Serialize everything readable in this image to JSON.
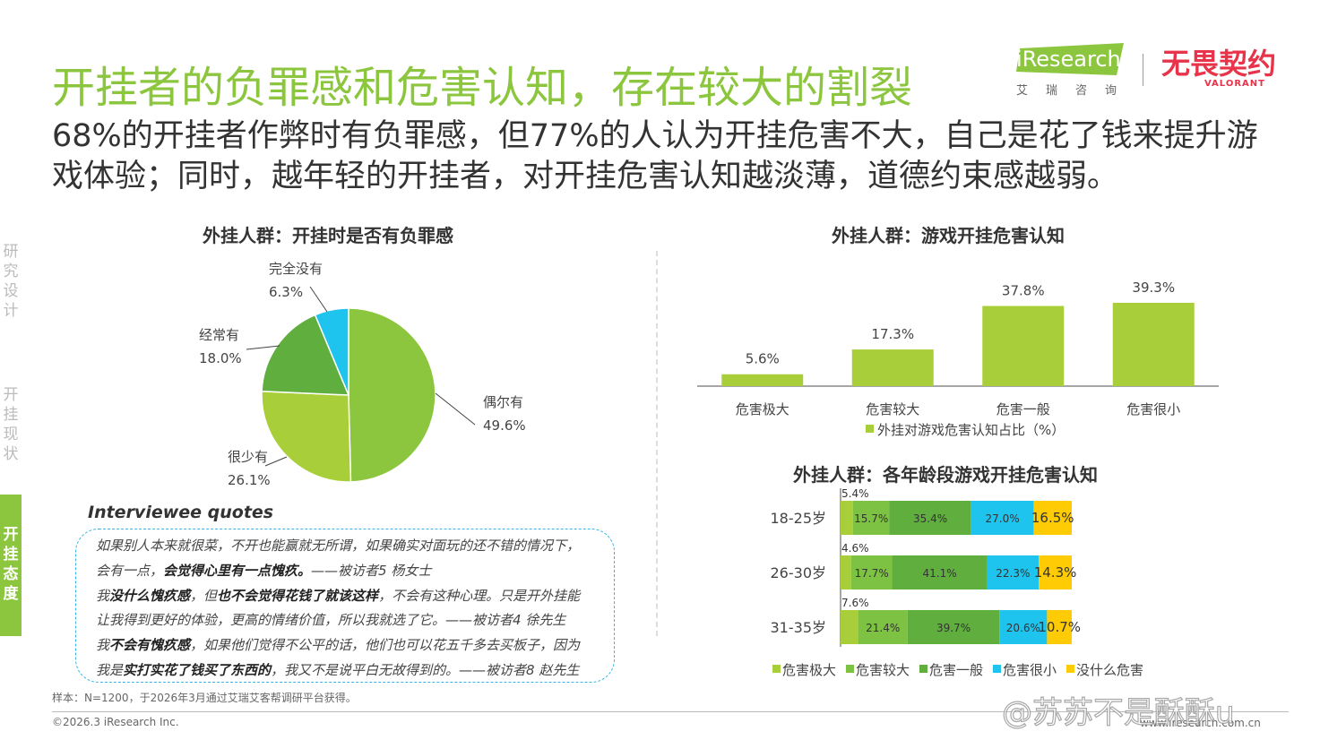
{
  "header": {
    "title": "开挂者的负罪感和危害认知，存在较大的割裂",
    "subtitle": "68%的开挂者作弊时有负罪感，但77%的人认为开挂危害不大，自己是花了钱来提升游戏体验；同时，越年轻的开挂者，对开挂危害认知越淡薄，道德约束感越弱。"
  },
  "logos": {
    "iresearch": "iResearch",
    "iresearch_sub": "艾瑞咨询",
    "valorant": "无畏契约",
    "valorant_sub": "VALORANT"
  },
  "sidenav": {
    "items": [
      {
        "label": "研究设计",
        "active": false
      },
      {
        "label": "开挂现状",
        "active": false
      },
      {
        "label": "开挂态度",
        "active": true
      }
    ]
  },
  "colors": {
    "lightgreen": "#a8cf3a",
    "green": "#8cc63f",
    "darkgreen": "#5fae3e",
    "cyan": "#1ec4ee",
    "yellow": "#ffcb05"
  },
  "chart_data": [
    {
      "type": "pie",
      "title": "外挂人群：开挂时是否有负罪感",
      "slices": [
        {
          "label": "偶尔有",
          "value": 49.6,
          "display": "49.6%",
          "color": "#8cc63f"
        },
        {
          "label": "很少有",
          "value": 26.1,
          "display": "26.1%",
          "color": "#a8cf3a"
        },
        {
          "label": "经常有",
          "value": 18.0,
          "display": "18.0%",
          "color": "#5fae3e"
        },
        {
          "label": "完全没有",
          "value": 6.3,
          "display": "6.3%",
          "color": "#1ec4ee"
        }
      ]
    },
    {
      "type": "bar",
      "title": "外挂人群：游戏开挂危害认知",
      "categories": [
        "危害极大",
        "危害较大",
        "危害一般",
        "危害很小"
      ],
      "values": [
        5.6,
        17.3,
        37.8,
        39.3
      ],
      "labels": [
        "5.6%",
        "17.3%",
        "37.8%",
        "39.3%"
      ],
      "legend": "外挂对游戏危害认知占比（%）",
      "color": "#a8cf3a"
    },
    {
      "type": "bar",
      "stacked": true,
      "horizontal": true,
      "title": "外挂人群：各年龄段游戏开挂危害认知",
      "categories": [
        "18-25岁",
        "26-30岁",
        "31-35岁"
      ],
      "series": [
        {
          "name": "危害极大",
          "values": [
            5.4,
            4.6,
            7.6
          ],
          "labels": [
            "5.4%",
            "4.6%",
            "7.6%"
          ],
          "color": "#a8cf3a"
        },
        {
          "name": "危害较大",
          "values": [
            15.7,
            17.7,
            21.4
          ],
          "labels": [
            "15.7%",
            "17.7%",
            "21.4%"
          ],
          "color": "#7dc242"
        },
        {
          "name": "危害一般",
          "values": [
            35.4,
            41.1,
            39.7
          ],
          "labels": [
            "35.4%",
            "41.1%",
            "39.7%"
          ],
          "color": "#5fae3e"
        },
        {
          "name": "危害很小",
          "values": [
            27.0,
            22.3,
            20.6
          ],
          "labels": [
            "27.0%",
            "22.3%",
            "20.6%"
          ],
          "color": "#1ec4ee"
        },
        {
          "name": "没什么危害",
          "values": [
            16.5,
            14.3,
            10.7
          ],
          "labels": [
            "16.5%",
            "14.3%",
            "10.7%"
          ],
          "color": "#ffcb05"
        }
      ]
    }
  ],
  "quotes": {
    "title": "Interviewee quotes",
    "lines": [
      [
        {
          "t": "如果别人本来就很菜，不开也能赢就无所谓，如果确实对面玩的还不错的情况下，",
          "b": false
        }
      ],
      [
        {
          "t": "会有一点，",
          "b": false
        },
        {
          "t": "会觉得心里有一点愧疚。",
          "b": true
        },
        {
          "t": "——被访者5 杨女士",
          "b": false
        }
      ],
      [
        {
          "t": "我",
          "b": false
        },
        {
          "t": "没什么愧疚感",
          "b": true
        },
        {
          "t": "，但",
          "b": false
        },
        {
          "t": "也不会觉得花钱了就该这样",
          "b": true
        },
        {
          "t": "，不会有这种心理。只是开外挂能",
          "b": false
        }
      ],
      [
        {
          "t": "让我得到更好的体验，更高的情绪价值，所以我就选了它。——被访者4 徐先生",
          "b": false
        }
      ],
      [
        {
          "t": "我",
          "b": false
        },
        {
          "t": "不会有愧疚感",
          "b": true
        },
        {
          "t": "，如果他们觉得不公平的话，他们也可以花五千多去买板子，因为",
          "b": false
        }
      ],
      [
        {
          "t": "我是",
          "b": false
        },
        {
          "t": "实打实花了钱买了东西的",
          "b": true
        },
        {
          "t": "，我又不是说平白无故得到的。——被访者8 赵先生",
          "b": false
        }
      ]
    ]
  },
  "footer": {
    "note": "样本：N=1200，于2026年3月通过艾瑞艾客帮调研平台获得。",
    "copyright": "©2026.3 iResearch Inc.",
    "site": "www.iresearch.com.cn",
    "watermark": "@苏苏不是酥酥u"
  }
}
